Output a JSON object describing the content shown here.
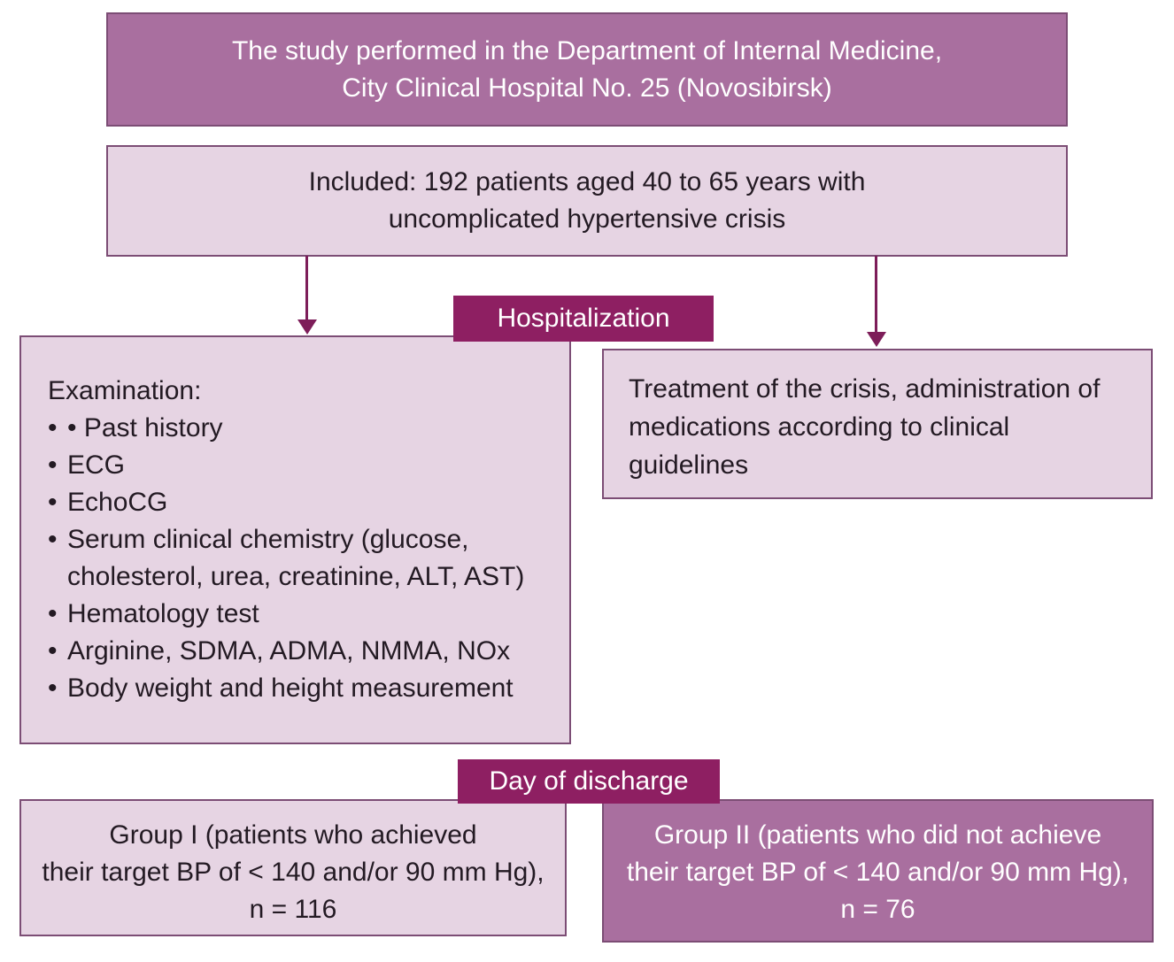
{
  "colors": {
    "mauve": "#a96f9f",
    "light": "#e6d4e3",
    "dark-label": "#8e1f62",
    "border-dark": "#7c4d75",
    "arrow": "#7d1d59",
    "text-dark": "#231a23",
    "text-light": "#ffffff"
  },
  "boxes": {
    "study": {
      "lines": [
        "The study performed in the Department of Internal Medicine,",
        "City Clinical Hospital No. 25 (Novosibirsk)"
      ]
    },
    "included": {
      "lines": [
        "Included: 192 patients aged 40 to 65 years with",
        "uncomplicated hypertensive crisis"
      ]
    },
    "hospitalization": {
      "label": "Hospitalization"
    },
    "examination": {
      "title": "Examination:",
      "items": [
        "• Past history",
        "ECG",
        "EchoCG",
        "Serum clinical chemistry (glucose, cholesterol, urea, creatinine, ALT, AST)",
        "Hematology test",
        "Arginine, SDMA, ADMA, NMMA, NOx",
        "Body weight and height measurement"
      ]
    },
    "treatment": {
      "text": "Treatment of the crisis, administration of medications according to clinical guidelines"
    },
    "discharge": {
      "label": "Day of discharge"
    },
    "group1": {
      "lines": [
        "Group I (patients who achieved",
        "their target BP of < 140 and/or 90 mm Hg),",
        "n = 116"
      ]
    },
    "group2": {
      "lines": [
        "Group II (patients who did not achieve",
        "their target BP of < 140 and/or 90 mm Hg),",
        "n = 76"
      ]
    }
  }
}
